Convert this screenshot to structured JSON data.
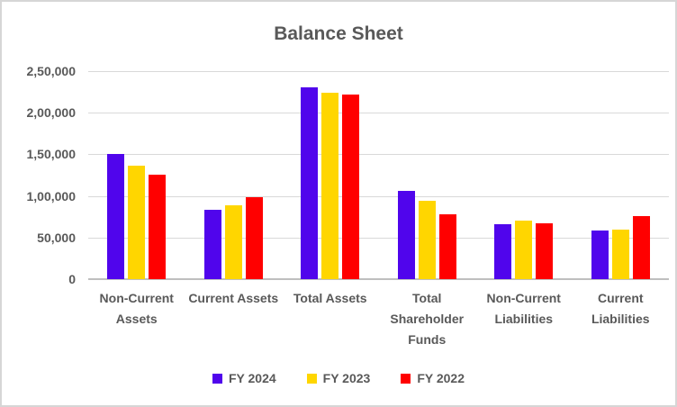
{
  "chart_data": {
    "type": "bar",
    "title": "Balance Sheet",
    "categories": [
      "Non-Current Assets",
      "Current Assets",
      "Total Assets",
      "Total Shareholder Funds",
      "Non-Current Liabilities",
      "Current Liabilities"
    ],
    "series": [
      {
        "name": "FY 2024",
        "color": "#5005EC",
        "values": [
          150000,
          83000,
          231000,
          106000,
          66000,
          58000
        ]
      },
      {
        "name": "FY 2023",
        "color": "#FFD600",
        "values": [
          136000,
          89000,
          224000,
          94000,
          70000,
          59000
        ]
      },
      {
        "name": "FY 2022",
        "color": "#FF0000",
        "values": [
          125000,
          99000,
          222000,
          78000,
          67000,
          76000
        ]
      }
    ],
    "ylim": [
      0,
      250000
    ],
    "ytick_step": 50000,
    "ytick_labels": [
      "0",
      "50,000",
      "1,00,000",
      "1,50,000",
      "2,00,000",
      "2,50,000"
    ],
    "xlabel": "",
    "ylabel": "",
    "grid": true,
    "legend_position": "bottom",
    "number_format": "indian"
  },
  "styles": {
    "title_color": "#595959",
    "label_color": "#595959",
    "gridline_color": "#D9D9D9",
    "axis_line_color": "#BFBFBF",
    "frame_border_color": "#D6D6D6",
    "background": "#FFFFFF"
  }
}
